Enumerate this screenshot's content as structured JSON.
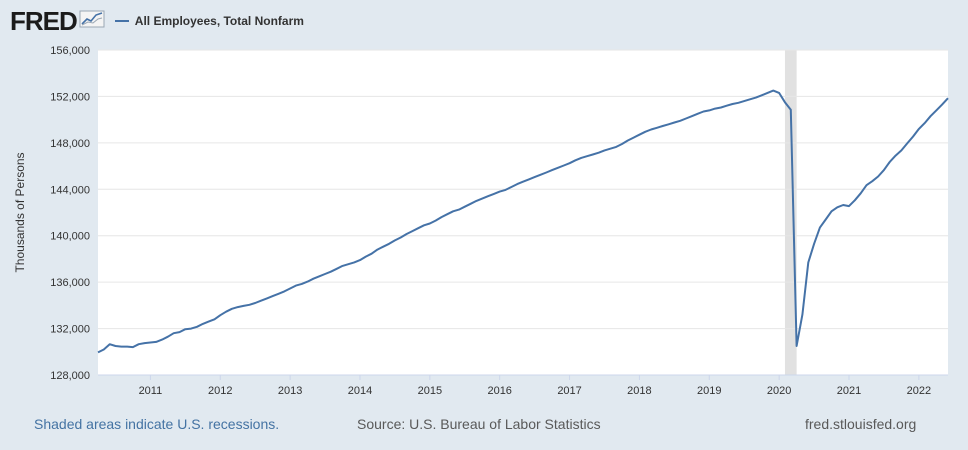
{
  "header": {
    "logo_text": "FRED",
    "logo_icon": "line-chart-icon"
  },
  "footer": {
    "recession_note": "Shaded areas indicate U.S. recessions.",
    "source": "Source: U.S. Bureau of Labor Statistics",
    "site": "fred.stlouisfed.org"
  },
  "colors": {
    "line": "#4572a7",
    "background": "#e1e9f0",
    "plot_bg": "#ffffff",
    "recession": "#e1e1e1",
    "grid": "#e6e6e6"
  },
  "chart_data": {
    "type": "line",
    "title": "",
    "xlabel": "",
    "ylabel": "Thousands of Persons",
    "xlim": [
      2010.25,
      2022.417
    ],
    "ylim": [
      128000,
      156000
    ],
    "yticks": [
      128000,
      132000,
      136000,
      140000,
      144000,
      148000,
      152000,
      156000
    ],
    "ytick_labels": [
      "128,000",
      "132,000",
      "136,000",
      "140,000",
      "144,000",
      "148,000",
      "152,000",
      "156,000"
    ],
    "xticks": [
      2011,
      2012,
      2013,
      2014,
      2015,
      2016,
      2017,
      2018,
      2019,
      2020,
      2021,
      2022
    ],
    "xtick_labels": [
      "2011",
      "2012",
      "2013",
      "2014",
      "2015",
      "2016",
      "2017",
      "2018",
      "2019",
      "2020",
      "2021",
      "2022"
    ],
    "grid": true,
    "legend_position": "top-left",
    "recessions": [
      [
        2020.083,
        2020.25
      ]
    ],
    "series": [
      {
        "name": "All Employees, Total Nonfarm",
        "points": [
          [
            2010.25,
            129950
          ],
          [
            2010.333,
            130200
          ],
          [
            2010.417,
            130650
          ],
          [
            2010.5,
            130500
          ],
          [
            2010.583,
            130450
          ],
          [
            2010.667,
            130450
          ],
          [
            2010.75,
            130400
          ],
          [
            2010.833,
            130650
          ],
          [
            2010.917,
            130750
          ],
          [
            2011.0,
            130800
          ],
          [
            2011.083,
            130850
          ],
          [
            2011.167,
            131050
          ],
          [
            2011.25,
            131300
          ],
          [
            2011.333,
            131600
          ],
          [
            2011.417,
            131700
          ],
          [
            2011.5,
            131950
          ],
          [
            2011.583,
            132000
          ],
          [
            2011.667,
            132150
          ],
          [
            2011.75,
            132400
          ],
          [
            2011.833,
            132600
          ],
          [
            2011.917,
            132800
          ],
          [
            2012.0,
            133150
          ],
          [
            2012.083,
            133450
          ],
          [
            2012.167,
            133700
          ],
          [
            2012.25,
            133850
          ],
          [
            2012.333,
            133950
          ],
          [
            2012.417,
            134050
          ],
          [
            2012.5,
            134200
          ],
          [
            2012.583,
            134400
          ],
          [
            2012.667,
            134600
          ],
          [
            2012.75,
            134800
          ],
          [
            2012.833,
            135000
          ],
          [
            2012.917,
            135200
          ],
          [
            2013.0,
            135450
          ],
          [
            2013.083,
            135700
          ],
          [
            2013.167,
            135850
          ],
          [
            2013.25,
            136050
          ],
          [
            2013.333,
            136300
          ],
          [
            2013.417,
            136500
          ],
          [
            2013.5,
            136700
          ],
          [
            2013.583,
            136900
          ],
          [
            2013.667,
            137150
          ],
          [
            2013.75,
            137400
          ],
          [
            2013.833,
            137550
          ],
          [
            2013.917,
            137700
          ],
          [
            2014.0,
            137900
          ],
          [
            2014.083,
            138200
          ],
          [
            2014.167,
            138450
          ],
          [
            2014.25,
            138800
          ],
          [
            2014.333,
            139050
          ],
          [
            2014.417,
            139300
          ],
          [
            2014.5,
            139600
          ],
          [
            2014.583,
            139850
          ],
          [
            2014.667,
            140150
          ],
          [
            2014.75,
            140400
          ],
          [
            2014.833,
            140650
          ],
          [
            2014.917,
            140900
          ],
          [
            2015.0,
            141050
          ],
          [
            2015.083,
            141300
          ],
          [
            2015.167,
            141600
          ],
          [
            2015.25,
            141850
          ],
          [
            2015.333,
            142100
          ],
          [
            2015.417,
            142250
          ],
          [
            2015.5,
            142500
          ],
          [
            2015.583,
            142750
          ],
          [
            2015.667,
            143000
          ],
          [
            2015.75,
            143200
          ],
          [
            2015.833,
            143400
          ],
          [
            2015.917,
            143600
          ],
          [
            2016.0,
            143800
          ],
          [
            2016.083,
            143950
          ],
          [
            2016.167,
            144200
          ],
          [
            2016.25,
            144450
          ],
          [
            2016.333,
            144650
          ],
          [
            2016.417,
            144850
          ],
          [
            2016.5,
            145050
          ],
          [
            2016.583,
            145250
          ],
          [
            2016.667,
            145450
          ],
          [
            2016.75,
            145650
          ],
          [
            2016.833,
            145850
          ],
          [
            2016.917,
            146050
          ],
          [
            2017.0,
            146250
          ],
          [
            2017.083,
            146500
          ],
          [
            2017.167,
            146700
          ],
          [
            2017.25,
            146850
          ],
          [
            2017.333,
            147000
          ],
          [
            2017.417,
            147150
          ],
          [
            2017.5,
            147350
          ],
          [
            2017.583,
            147500
          ],
          [
            2017.667,
            147650
          ],
          [
            2017.75,
            147900
          ],
          [
            2017.833,
            148200
          ],
          [
            2017.917,
            148450
          ],
          [
            2018.0,
            148700
          ],
          [
            2018.083,
            148950
          ],
          [
            2018.167,
            149150
          ],
          [
            2018.25,
            149300
          ],
          [
            2018.333,
            149450
          ],
          [
            2018.417,
            149600
          ],
          [
            2018.5,
            149750
          ],
          [
            2018.583,
            149900
          ],
          [
            2018.667,
            150100
          ],
          [
            2018.75,
            150300
          ],
          [
            2018.833,
            150500
          ],
          [
            2018.917,
            150700
          ],
          [
            2019.0,
            150800
          ],
          [
            2019.083,
            150950
          ],
          [
            2019.167,
            151050
          ],
          [
            2019.25,
            151200
          ],
          [
            2019.333,
            151350
          ],
          [
            2019.417,
            151450
          ],
          [
            2019.5,
            151600
          ],
          [
            2019.583,
            151750
          ],
          [
            2019.667,
            151900
          ],
          [
            2019.75,
            152100
          ],
          [
            2019.833,
            152300
          ],
          [
            2019.917,
            152500
          ],
          [
            2020.0,
            152300
          ],
          [
            2020.083,
            151500
          ],
          [
            2020.167,
            150850
          ],
          [
            2020.25,
            130500
          ],
          [
            2020.333,
            133200
          ],
          [
            2020.417,
            137700
          ],
          [
            2020.5,
            139300
          ],
          [
            2020.583,
            140700
          ],
          [
            2020.667,
            141400
          ],
          [
            2020.75,
            142100
          ],
          [
            2020.833,
            142450
          ],
          [
            2020.917,
            142650
          ],
          [
            2021.0,
            142550
          ],
          [
            2021.083,
            143050
          ],
          [
            2021.167,
            143650
          ],
          [
            2021.25,
            144350
          ],
          [
            2021.333,
            144700
          ],
          [
            2021.417,
            145100
          ],
          [
            2021.5,
            145650
          ],
          [
            2021.583,
            146350
          ],
          [
            2021.667,
            146900
          ],
          [
            2021.75,
            147350
          ],
          [
            2021.833,
            147950
          ],
          [
            2021.917,
            148550
          ],
          [
            2022.0,
            149200
          ],
          [
            2022.083,
            149700
          ],
          [
            2022.167,
            150300
          ],
          [
            2022.25,
            150800
          ],
          [
            2022.333,
            151300
          ],
          [
            2022.417,
            151850
          ]
        ]
      }
    ]
  }
}
